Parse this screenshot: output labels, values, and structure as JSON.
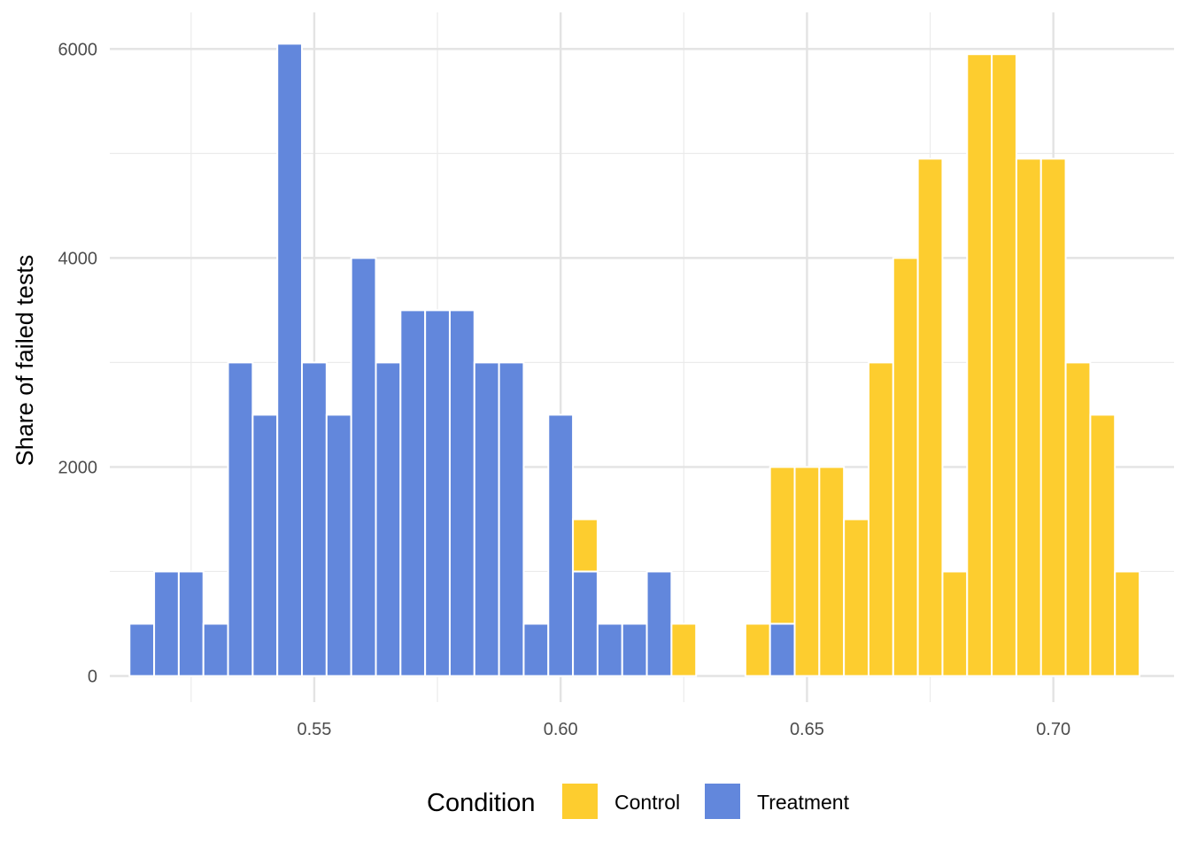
{
  "chart_data": {
    "type": "bar",
    "subtype": "stacked-histogram",
    "title": "",
    "xlabel": "",
    "ylabel": "Share of failed tests",
    "xlim": [
      0.5085,
      0.7245
    ],
    "ylim": [
      -250,
      6350
    ],
    "x_ticks": [
      0.55,
      0.6,
      0.65,
      0.7
    ],
    "x_tick_labels": [
      "0.55",
      "0.60",
      "0.65",
      "0.70"
    ],
    "y_ticks": [
      0,
      2000,
      4000,
      6000
    ],
    "y_tick_labels": [
      "0",
      "2000",
      "4000",
      "6000"
    ],
    "grid": true,
    "bin_width": 0.005,
    "bin_start": 0.5125,
    "bin_count": 41,
    "legend": {
      "title": "Condition",
      "position": "bottom",
      "items": [
        {
          "label": "Control",
          "color": "#FDCD2F"
        },
        {
          "label": "Treatment",
          "color": "#6287DC"
        }
      ]
    },
    "series": [
      {
        "name": "Treatment",
        "color": "#6287DC",
        "values": [
          500,
          1000,
          1000,
          500,
          3000,
          2500,
          6050,
          3000,
          2500,
          4000,
          3000,
          3500,
          3500,
          3500,
          3000,
          3000,
          500,
          2500,
          1000,
          500,
          500,
          1000,
          0,
          0,
          0,
          0,
          500,
          0,
          0,
          0,
          0,
          0,
          0,
          0,
          0,
          0,
          0,
          0,
          0,
          0,
          0
        ]
      },
      {
        "name": "Control",
        "color": "#FDCD2F",
        "values": [
          0,
          0,
          0,
          0,
          0,
          0,
          0,
          0,
          0,
          0,
          0,
          0,
          0,
          0,
          0,
          0,
          0,
          0,
          500,
          0,
          0,
          0,
          500,
          0,
          0,
          500,
          1500,
          2000,
          2000,
          1500,
          3000,
          4000,
          4950,
          1000,
          5950,
          5950,
          4950,
          4950,
          3000,
          2500,
          1000
        ]
      }
    ]
  }
}
